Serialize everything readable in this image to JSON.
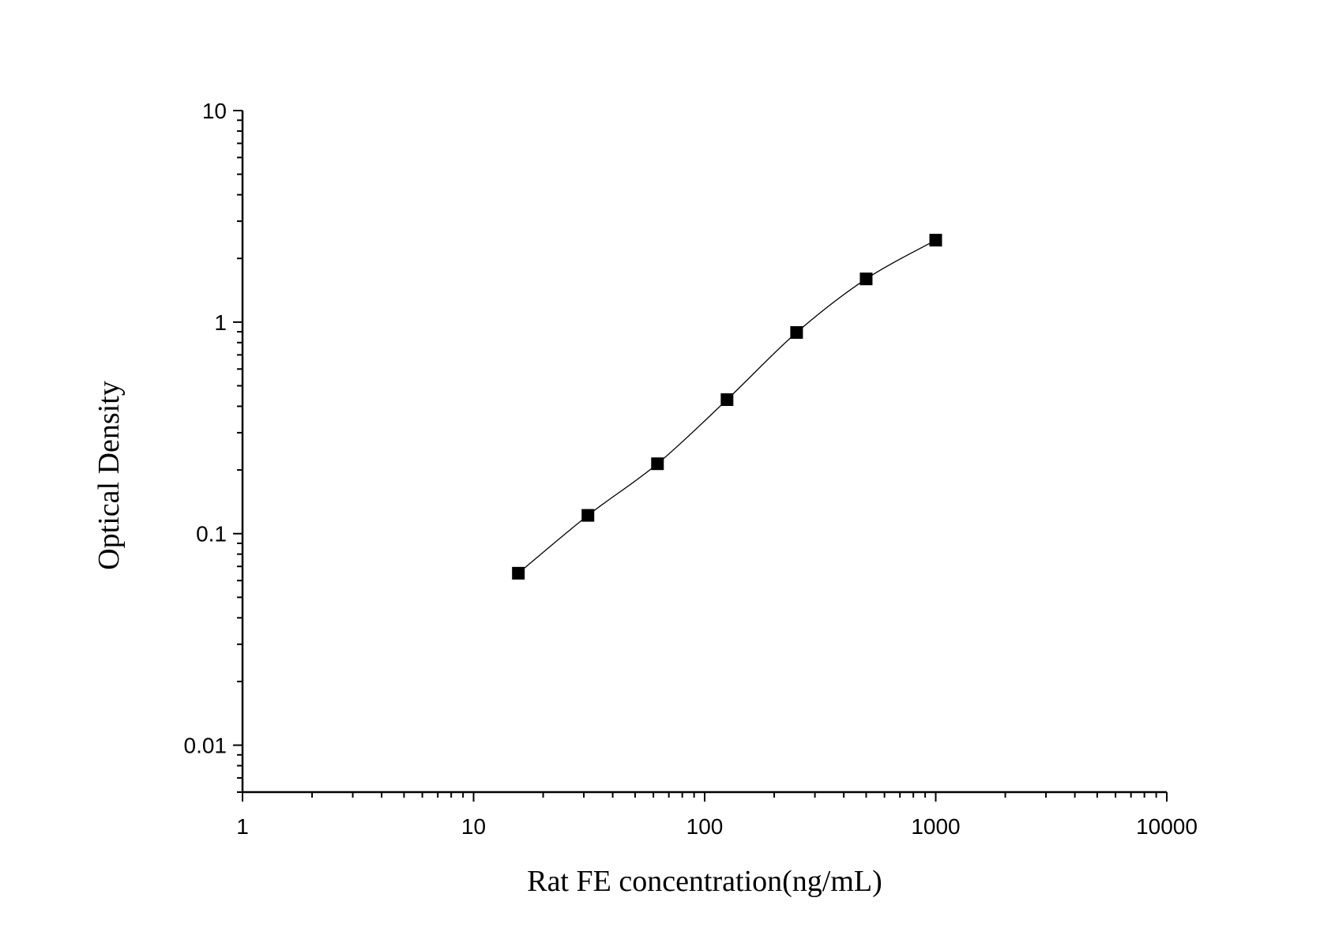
{
  "chart_data": {
    "type": "scatter",
    "title": "",
    "xlabel": "Rat FE concentration(ng/mL)",
    "ylabel": "Optical Density",
    "x_scale": "log",
    "y_scale": "log",
    "xlim": [
      1,
      10000
    ],
    "ylim": [
      0.006,
      10
    ],
    "x_ticks": [
      "1",
      "10",
      "100",
      "1000",
      "10000"
    ],
    "y_ticks": [
      "0.01",
      "0.1",
      "1",
      "10"
    ],
    "grid": false,
    "legend": "none",
    "marker": "square",
    "fit_line": "smooth curve",
    "colors": {
      "marker": "#000000",
      "line": "#000000"
    },
    "series": [
      {
        "x": [
          15.625,
          31.25,
          62.5,
          125,
          250,
          500,
          1000
        ],
        "y": [
          0.065,
          0.122,
          0.214,
          0.43,
          0.893,
          1.6,
          2.44
        ]
      }
    ]
  }
}
